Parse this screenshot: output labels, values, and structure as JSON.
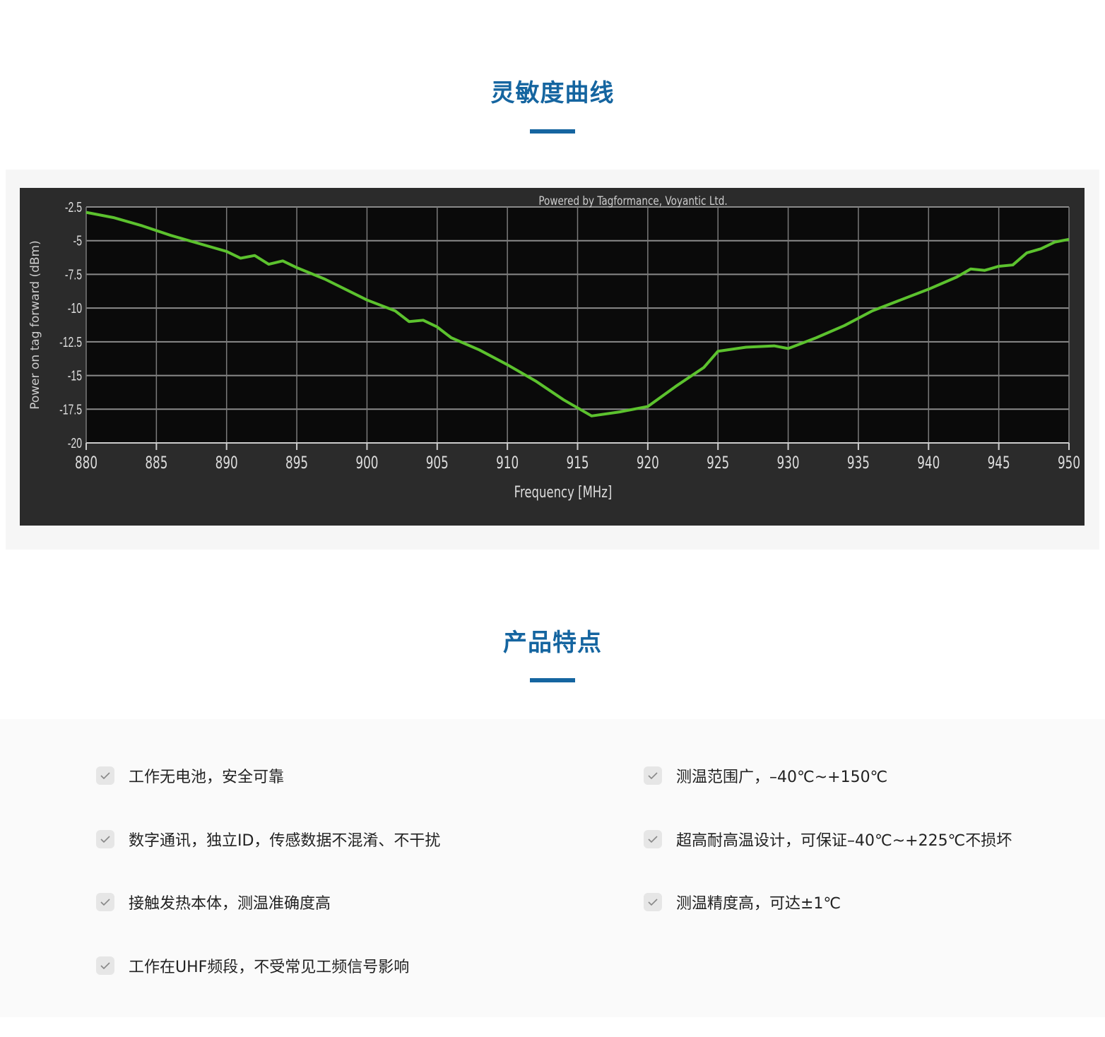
{
  "sections": {
    "sensitivity_title": "灵敏度曲线",
    "features_title": "产品特点"
  },
  "colors": {
    "accent": "#1565a0",
    "curve": "#5cc22e",
    "chart_bg": "#2b2b2b",
    "plot_bg": "#0a0a0a"
  },
  "chart_data": {
    "type": "line",
    "watermark": "Powered by Tagformance, Voyantic Ltd.",
    "xlabel": "Frequency [MHz]",
    "ylabel": "Power on tag forward (dBm)",
    "xlim": [
      880,
      950
    ],
    "ylim": [
      -20,
      -2.5
    ],
    "xticks": [
      "880",
      "885",
      "890",
      "895",
      "900",
      "905",
      "910",
      "915",
      "920",
      "925",
      "930",
      "935",
      "940",
      "945",
      "950"
    ],
    "yticks": [
      "-2.5",
      "-5",
      "-7.5",
      "-10",
      "-12.5",
      "-15",
      "-17.5",
      "-20"
    ],
    "grid": true,
    "x": [
      880,
      882,
      884,
      886,
      887,
      889,
      890,
      891,
      892,
      893,
      894,
      895,
      897,
      900,
      902,
      903,
      904,
      905,
      906,
      908,
      910,
      912,
      914,
      916,
      918,
      920,
      922,
      924,
      925,
      927,
      929,
      930,
      932,
      934,
      936,
      938,
      940,
      942,
      943,
      944,
      945,
      946,
      947,
      948,
      949,
      950
    ],
    "y": [
      -2.9,
      -3.3,
      -3.9,
      -4.6,
      -4.9,
      -5.5,
      -5.8,
      -6.3,
      -6.1,
      -6.75,
      -6.5,
      -7.0,
      -7.85,
      -9.4,
      -10.2,
      -11.0,
      -10.9,
      -11.4,
      -12.2,
      -13.1,
      -14.2,
      -15.4,
      -16.8,
      -18.0,
      -17.7,
      -17.3,
      -15.8,
      -14.4,
      -13.2,
      -12.9,
      -12.8,
      -13.0,
      -12.2,
      -11.3,
      -10.2,
      -9.4,
      -8.6,
      -7.7,
      -7.1,
      -7.2,
      -6.9,
      -6.8,
      -5.9,
      -5.6,
      -5.1,
      -4.9
    ]
  },
  "features": {
    "left": [
      "工作无电池，安全可靠",
      "数字通讯，独立ID，传感数据不混淆、不干扰",
      "接触发热本体，测温准确度高",
      "工作在UHF频段，不受常见工频信号影响"
    ],
    "right": [
      "测温范围广，–40℃~+150℃",
      "超高耐高温设计，可保证–40℃~+225℃不损坏",
      "测温精度高，可达±1℃"
    ],
    "icon": "check-icon"
  }
}
